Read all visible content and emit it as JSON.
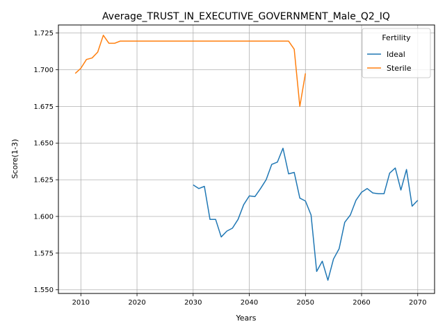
{
  "chart_data": {
    "type": "line",
    "title": "Average_TRUST_IN_EXECUTIVE_GOVERNMENT_Male_Q2_IQ",
    "xlabel": "Years",
    "ylabel": "Score(1-3)",
    "xlim": [
      2006,
      2073
    ],
    "ylim": [
      1.5475,
      1.7305
    ],
    "x_ticks": [
      2010,
      2020,
      2030,
      2040,
      2050,
      2060,
      2070
    ],
    "x_tick_labels": [
      "2010",
      "2020",
      "2030",
      "2040",
      "2050",
      "2060",
      "2070"
    ],
    "y_ticks": [
      1.55,
      1.575,
      1.6,
      1.625,
      1.65,
      1.675,
      1.7,
      1.725
    ],
    "y_tick_labels": [
      "1.550",
      "1.575",
      "1.600",
      "1.625",
      "1.650",
      "1.675",
      "1.700",
      "1.725"
    ],
    "grid": true,
    "legend": {
      "title": "Fertility",
      "placement": "top-right"
    },
    "series": [
      {
        "name": "Ideal",
        "color": "#1f77b4",
        "x": [
          2030,
          2031,
          2032,
          2033,
          2034,
          2035,
          2036,
          2037,
          2038,
          2039,
          2040,
          2041,
          2042,
          2043,
          2044,
          2045,
          2046,
          2047,
          2048,
          2049,
          2050,
          2051,
          2052,
          2053,
          2054,
          2055,
          2056,
          2057,
          2058,
          2059,
          2060,
          2061,
          2062,
          2063,
          2064,
          2065,
          2066,
          2067,
          2068,
          2069,
          2070
        ],
        "y": [
          1.6215,
          1.619,
          1.6205,
          1.598,
          1.598,
          1.586,
          1.59,
          1.592,
          1.598,
          1.608,
          1.614,
          1.6135,
          1.619,
          1.625,
          1.6355,
          1.637,
          1.6465,
          1.629,
          1.63,
          1.6125,
          1.6105,
          1.601,
          1.5625,
          1.5695,
          1.5565,
          1.571,
          1.578,
          1.596,
          1.601,
          1.611,
          1.6165,
          1.619,
          1.616,
          1.6155,
          1.6155,
          1.6295,
          1.633,
          1.618,
          1.632,
          1.607,
          1.611
        ]
      },
      {
        "name": "Sterile",
        "color": "#ff7f0e",
        "x": [
          2009,
          2010,
          2011,
          2012,
          2013,
          2014,
          2015,
          2016,
          2017,
          2018,
          2019,
          2020,
          2021,
          2022,
          2023,
          2024,
          2025,
          2026,
          2027,
          2028,
          2029,
          2030,
          2031,
          2032,
          2033,
          2034,
          2035,
          2036,
          2037,
          2038,
          2039,
          2040,
          2041,
          2042,
          2043,
          2044,
          2045,
          2046,
          2047,
          2048,
          2049,
          2050
        ],
        "y": [
          1.6975,
          1.701,
          1.707,
          1.708,
          1.712,
          1.7235,
          1.718,
          1.718,
          1.7195,
          1.7195,
          1.7195,
          1.7195,
          1.7195,
          1.7195,
          1.7195,
          1.7195,
          1.7195,
          1.7195,
          1.7195,
          1.7195,
          1.7195,
          1.7195,
          1.7195,
          1.7195,
          1.7195,
          1.7195,
          1.7195,
          1.7195,
          1.7195,
          1.7195,
          1.7195,
          1.7195,
          1.7195,
          1.7195,
          1.7195,
          1.7195,
          1.7195,
          1.7195,
          1.7195,
          1.714,
          1.675,
          1.6975
        ]
      }
    ]
  }
}
